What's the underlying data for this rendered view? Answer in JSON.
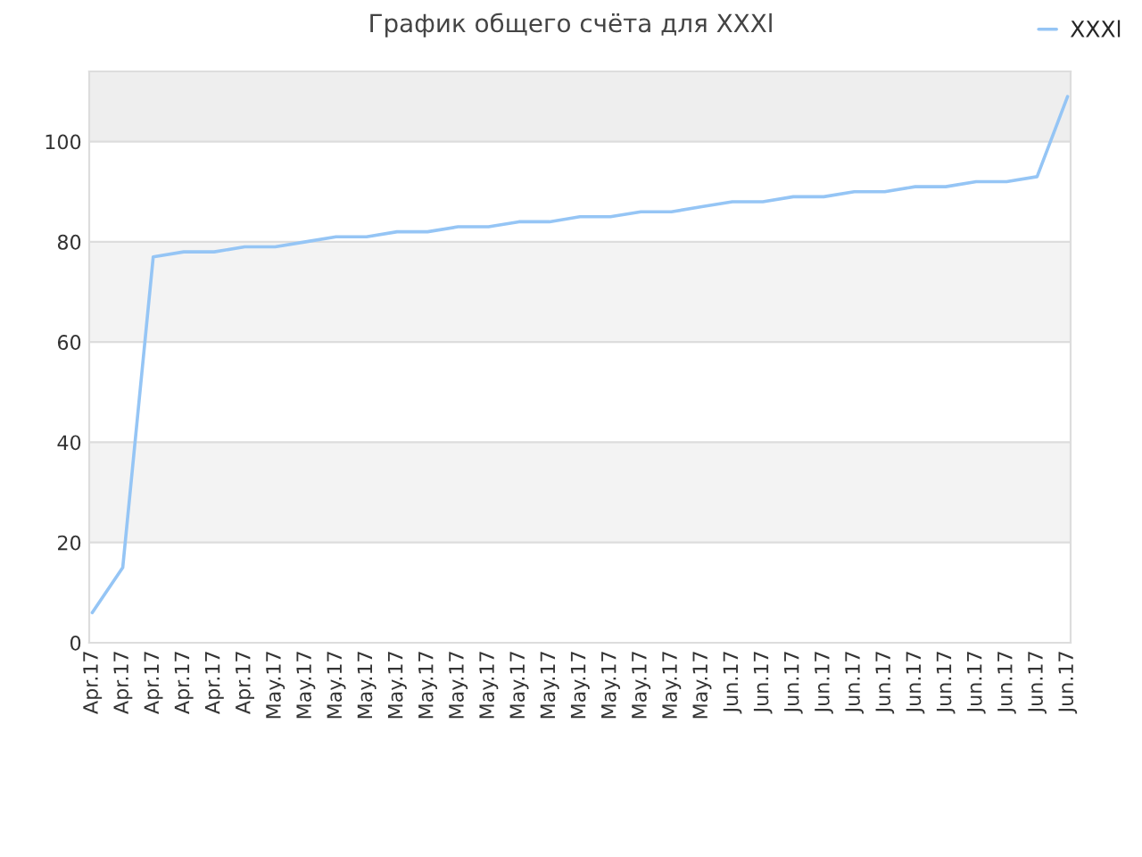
{
  "chart_data": {
    "type": "line",
    "title": "График общего счёта для XXXl",
    "categories": [
      "Apr.17",
      "Apr.17",
      "Apr.17",
      "Apr.17",
      "Apr.17",
      "Apr.17",
      "May.17",
      "May.17",
      "May.17",
      "May.17",
      "May.17",
      "May.17",
      "May.17",
      "May.17",
      "May.17",
      "May.17",
      "May.17",
      "May.17",
      "May.17",
      "May.17",
      "May.17",
      "Jun.17",
      "Jun.17",
      "Jun.17",
      "Jun.17",
      "Jun.17",
      "Jun.17",
      "Jun.17",
      "Jun.17",
      "Jun.17",
      "Jun.17",
      "Jun.17",
      "Jun.17"
    ],
    "series": [
      {
        "name": "XXXl",
        "color": "#95c5f5",
        "values": [
          6,
          15,
          77,
          78,
          78,
          79,
          79,
          80,
          81,
          81,
          82,
          82,
          83,
          83,
          84,
          84,
          85,
          85,
          86,
          86,
          87,
          88,
          88,
          89,
          89,
          90,
          90,
          91,
          91,
          92,
          92,
          93,
          109
        ]
      }
    ],
    "ylim": [
      0,
      114
    ],
    "yticks": [
      0,
      20,
      40,
      60,
      80,
      100
    ],
    "grid": "y",
    "legend": "top right",
    "marker": "none",
    "line_style": "solid"
  }
}
